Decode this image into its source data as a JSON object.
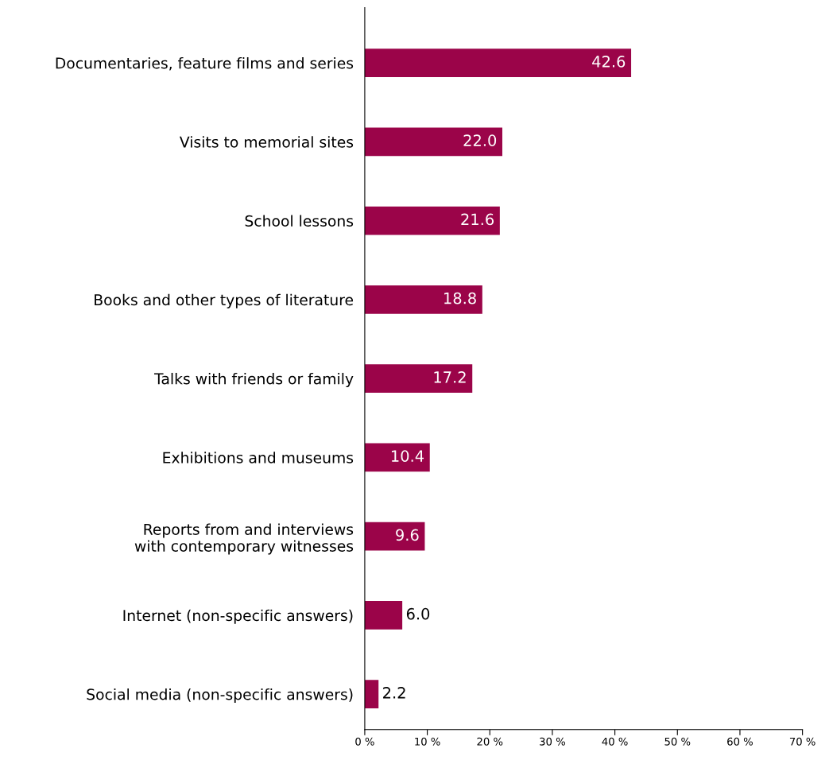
{
  "chart_data": {
    "type": "bar",
    "orientation": "horizontal",
    "categories": [
      "Documentaries, feature films and series",
      "Visits to memorial sites",
      "School lessons",
      "Books and other types of literature",
      "Talks with friends or family",
      "Exhibitions and museums",
      "Reports from and interviews\nwith contemporary witnesses",
      "Internet (non-specific answers)",
      "Social media (non-specific answers)"
    ],
    "values": [
      42.6,
      22.0,
      21.6,
      18.8,
      17.2,
      10.4,
      9.6,
      6.0,
      2.2
    ],
    "value_labels": [
      "42.6",
      "22.0",
      "21.6",
      "18.8",
      "17.2",
      "10.4",
      "9.6",
      "6.0",
      "2.2"
    ],
    "color": "#9b0449",
    "xlim": [
      0,
      70
    ],
    "xticks": [
      {
        "value": 0,
        "label": "0 %"
      },
      {
        "value": 10,
        "label": "10 %"
      },
      {
        "value": 20,
        "label": "20 %"
      },
      {
        "value": 30,
        "label": "30 %"
      },
      {
        "value": 40,
        "label": "40 %"
      },
      {
        "value": 50,
        "label": "50 %"
      },
      {
        "value": 60,
        "label": "60 %"
      },
      {
        "value": 70,
        "label": "70 %"
      }
    ],
    "grid": false
  }
}
